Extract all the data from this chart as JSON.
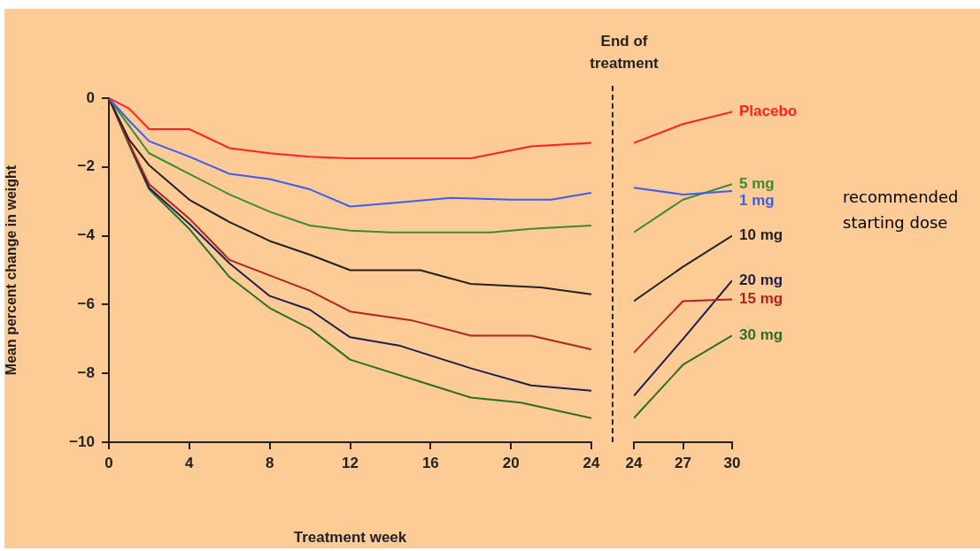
{
  "chart_data": [
    {
      "type": "line",
      "xlabel": "Treatment week",
      "ylabel": "Mean percent change in weight",
      "xlim": [
        0,
        24
      ],
      "xticks": [
        0,
        4,
        8,
        12,
        16,
        20,
        24
      ],
      "ylim": [
        -10,
        0
      ],
      "yticks": [
        -10,
        -8,
        -6,
        -4,
        -2,
        0
      ],
      "series": [
        {
          "color": "#ff2020",
          "x": [
            0,
            1,
            2,
            4,
            6,
            8,
            10,
            12,
            18,
            21,
            24
          ],
          "values": [
            0,
            -0.3,
            -0.9,
            -0.9,
            -1.45,
            -1.6,
            -1.7,
            -1.75,
            -1.75,
            -1.4,
            -1.3
          ]
        },
        {
          "color": "#3a5ef0",
          "x": [
            0,
            1,
            2,
            4,
            6,
            8,
            10,
            12,
            14,
            17,
            20,
            22,
            24
          ],
          "values": [
            0,
            -0.65,
            -1.25,
            -1.7,
            -2.2,
            -2.35,
            -2.65,
            -3.15,
            -3.05,
            -2.9,
            -2.95,
            -2.95,
            -2.75
          ]
        },
        {
          "color": "#3a8a3a",
          "x": [
            0,
            1,
            2,
            4,
            6,
            8,
            10,
            12,
            14,
            19,
            21,
            24
          ],
          "values": [
            0,
            -0.8,
            -1.6,
            -2.2,
            -2.8,
            -3.3,
            -3.7,
            -3.85,
            -3.9,
            -3.9,
            -3.8,
            -3.7
          ]
        },
        {
          "color": "#222222",
          "x": [
            0,
            1,
            2,
            4,
            6,
            8,
            10,
            12,
            15.5,
            18,
            21.5,
            24
          ],
          "values": [
            0,
            -1.2,
            -1.95,
            -2.95,
            -3.6,
            -4.15,
            -4.55,
            -5.0,
            -5.0,
            -5.4,
            -5.5,
            -5.7
          ]
        },
        {
          "color": "#b22222",
          "x": [
            0,
            1,
            2,
            4,
            6,
            8,
            10,
            12,
            15,
            18,
            21,
            24
          ],
          "values": [
            0,
            -1.3,
            -2.5,
            -3.5,
            -4.7,
            -5.15,
            -5.6,
            -6.2,
            -6.45,
            -6.9,
            -6.9,
            -7.3
          ]
        },
        {
          "color": "#1e1e50",
          "x": [
            0,
            1,
            2,
            4,
            6,
            8,
            10,
            12,
            14.5,
            18,
            21,
            24
          ],
          "values": [
            0,
            -1.3,
            -2.6,
            -3.65,
            -4.8,
            -5.75,
            -6.15,
            -6.95,
            -7.2,
            -7.85,
            -8.35,
            -8.5
          ]
        },
        {
          "color": "#2a6e2a",
          "x": [
            0,
            1,
            2,
            4,
            6,
            8,
            10,
            12,
            18,
            20.5,
            24
          ],
          "values": [
            0,
            -1.35,
            -2.65,
            -3.8,
            -5.2,
            -6.1,
            -6.7,
            -7.6,
            -8.7,
            -8.85,
            -9.3
          ]
        }
      ]
    },
    {
      "type": "line",
      "xlim": [
        24,
        30
      ],
      "xticks": [
        24,
        27,
        30
      ],
      "ylim": [
        -10,
        0
      ],
      "tick_labels": "x",
      "annotations": [
        "End of treatment",
        "recommended starting dose"
      ],
      "series": [
        {
          "name": "Placebo",
          "color": "#ff2020",
          "x": [
            24,
            27,
            30
          ],
          "values": [
            -1.3,
            -0.75,
            -0.4
          ]
        },
        {
          "name": "1 mg",
          "color": "#3a5ef0",
          "x": [
            24,
            27,
            30
          ],
          "values": [
            -2.6,
            -2.8,
            -2.7
          ]
        },
        {
          "name": "5 mg",
          "color": "#3a8a3a",
          "x": [
            24,
            27,
            30
          ],
          "values": [
            -3.9,
            -2.95,
            -2.5
          ]
        },
        {
          "name": "10 mg",
          "color": "#222222",
          "x": [
            24,
            27,
            30
          ],
          "values": [
            -5.9,
            -4.9,
            -4.0
          ]
        },
        {
          "name": "15 mg",
          "color": "#b22222",
          "x": [
            24,
            27,
            30
          ],
          "values": [
            -7.4,
            -5.9,
            -5.85
          ]
        },
        {
          "name": "20 mg",
          "color": "#1e1e50",
          "x": [
            24,
            27,
            30
          ],
          "values": [
            -8.65,
            -7.0,
            -5.3
          ]
        },
        {
          "name": "30 mg",
          "color": "#2a6e2a",
          "x": [
            24,
            27,
            30
          ],
          "values": [
            -9.3,
            -7.75,
            -6.9
          ]
        }
      ]
    }
  ]
}
